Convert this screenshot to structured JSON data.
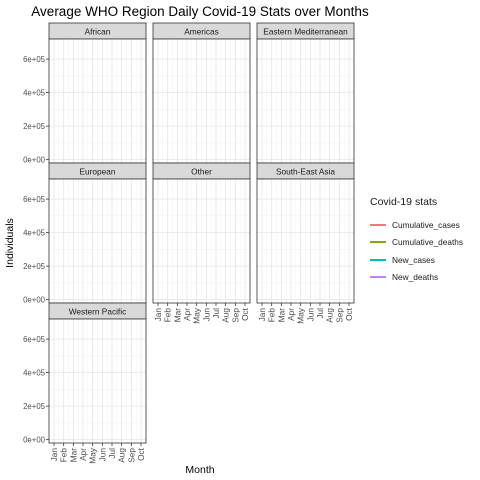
{
  "chart_data": {
    "type": "line",
    "title": "Average WHO Region Daily Covid-19 Stats over Months",
    "xlabel": "Month",
    "ylabel": "Individuals",
    "x_categories": [
      "Jan",
      "Feb",
      "Mar",
      "Apr",
      "May",
      "Jun",
      "Jul",
      "Aug",
      "Sep",
      "Oct"
    ],
    "y_ticks": [
      "0e+00",
      "2e+05",
      "4e+05",
      "6e+05"
    ],
    "y_tick_values": [
      0,
      200000,
      400000,
      600000
    ],
    "ylim": [
      -20000,
      720000
    ],
    "grid": true,
    "theme": "bw",
    "facets": [
      "African",
      "Americas",
      "Eastern Mediterranean",
      "European",
      "Other",
      "South-East Asia",
      "Western Pacific"
    ],
    "legend": {
      "title": "Covid-19 stats",
      "position": "right",
      "entries": [
        {
          "label": "Cumulative_cases",
          "color": "#F8766D"
        },
        {
          "label": "Cumulative_deaths",
          "color": "#7CAE00"
        },
        {
          "label": "New_cases",
          "color": "#00BFC4"
        },
        {
          "label": "New_deaths",
          "color": "#C77CFF"
        }
      ]
    },
    "series": []
  }
}
